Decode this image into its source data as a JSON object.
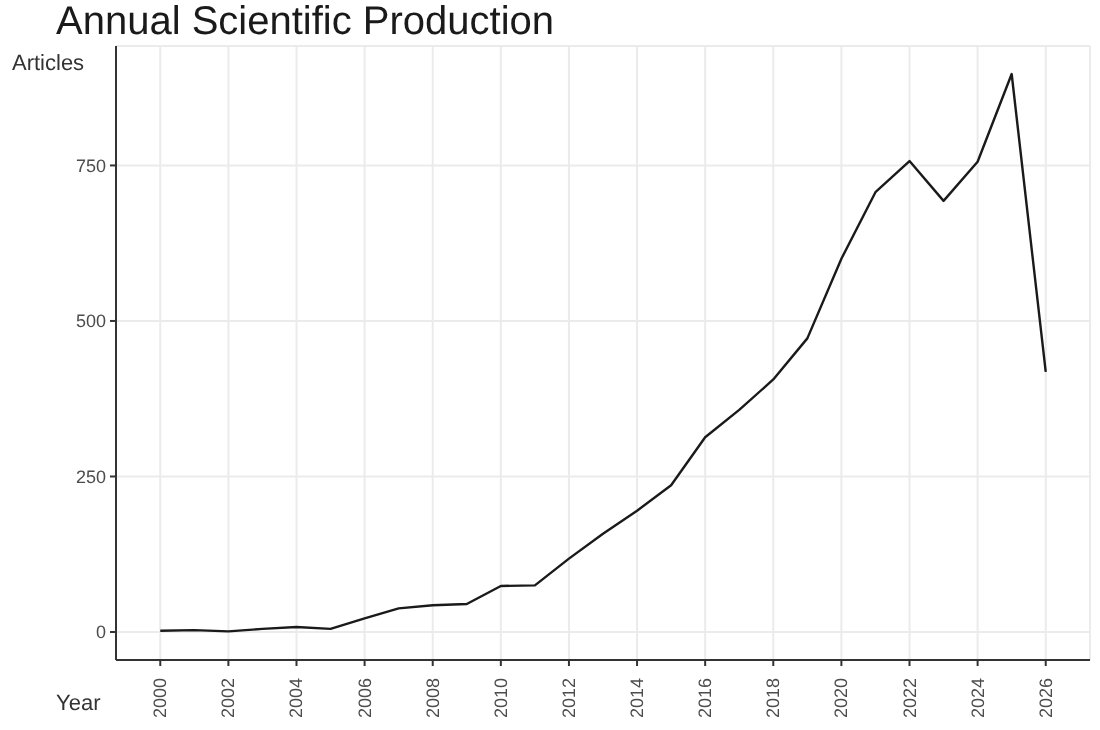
{
  "chart_data": {
    "type": "line",
    "title": "Annual Scientific Production",
    "xlabel": "Year",
    "ylabel": "Articles",
    "x": [
      2000,
      2001,
      2002,
      2003,
      2004,
      2005,
      2006,
      2007,
      2008,
      2009,
      2010,
      2011,
      2012,
      2013,
      2014,
      2015,
      2016,
      2017,
      2018,
      2019,
      2020,
      2021,
      2022,
      2023,
      2024,
      2025,
      2026
    ],
    "series": [
      {
        "color": "#1a1a1a",
        "values": [
          2,
          3,
          1,
          5,
          8,
          5,
          22,
          38,
          43,
          45,
          74,
          75,
          118,
          158,
          195,
          236,
          313,
          357,
          406,
          472,
          600,
          707,
          757,
          693,
          756,
          897,
          418
        ]
      }
    ],
    "xlim": [
      1998.7,
      2027.3
    ],
    "ylim": [
      -45,
      942
    ],
    "xticks": [
      2000,
      2002,
      2004,
      2006,
      2008,
      2010,
      2012,
      2014,
      2016,
      2018,
      2020,
      2022,
      2024,
      2026
    ],
    "yticks": [
      0,
      250,
      500,
      750
    ],
    "grid": true,
    "marker": "none",
    "line_style": "solid"
  }
}
